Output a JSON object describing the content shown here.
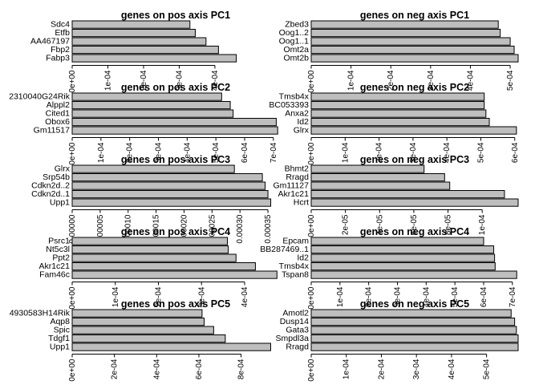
{
  "chart_data": [
    {
      "type": "bar",
      "orientation": "horizontal",
      "title": "genes on pos axis PC1",
      "categories": [
        "Sdc4",
        "Etfb",
        "AA467197",
        "Fbp2",
        "Fabp3"
      ],
      "values": [
        0.00033,
        0.000345,
        0.000375,
        0.00041,
        0.00046
      ],
      "xlim": [
        0,
        0.00058
      ],
      "tick_labels": [
        "0e+00",
        "1e-04",
        "2e-04",
        "3e-04",
        "4e-04"
      ]
    },
    {
      "type": "bar",
      "orientation": "horizontal",
      "title": "genes on neg axis PC1",
      "categories": [
        "Zbed3",
        "Oog1..2",
        "Oog1..1",
        "Omt2a",
        "Omt2b"
      ],
      "values": [
        0.00047,
        0.000475,
        0.0005,
        0.00051,
        0.00052
      ],
      "xlim": [
        0,
        0.00052
      ],
      "tick_labels": [
        "0e+00",
        "1e-04",
        "2e-04",
        "3e-04",
        "4e-04",
        "5e-04"
      ]
    },
    {
      "type": "bar",
      "orientation": "horizontal",
      "title": "genes on pos axis PC2",
      "categories": [
        "2310040G24Rik",
        "Alppl2",
        "Cited1",
        "Obox6",
        "Gm11517"
      ],
      "values": [
        0.00052,
        0.00055,
        0.00056,
        0.00071,
        0.000715
      ],
      "xlim": [
        0,
        0.00072
      ],
      "tick_labels": [
        "0e+00",
        "1e-04",
        "2e-04",
        "3e-04",
        "4e-04",
        "5e-04",
        "6e-04",
        "7e-04"
      ]
    },
    {
      "type": "bar",
      "orientation": "horizontal",
      "title": "genes on neg axis PC2",
      "categories": [
        "Tmsb4x",
        "BC053393",
        "Anxa2",
        "Id2",
        "Glrx"
      ],
      "values": [
        0.00051,
        0.00051,
        0.000515,
        0.000525,
        0.000605
      ],
      "xlim": [
        0,
        0.00061
      ],
      "tick_labels": [
        "0e+00",
        "1e-04",
        "2e-04",
        "3e-04",
        "4e-04",
        "5e-04",
        "6e-04"
      ]
    },
    {
      "type": "bar",
      "orientation": "horizontal",
      "title": "genes on pos axis PC3",
      "categories": [
        "Glrx",
        "Srp54b",
        "Cdkn2d..2",
        "Cdkn2d..1",
        "Upp1"
      ],
      "values": [
        0.00029,
        0.00034,
        0.000345,
        0.00035,
        0.000355
      ],
      "xlim": [
        0,
        0.00037
      ],
      "tick_labels": [
        "0.00000",
        "0.00005",
        "0.00010",
        "0.00015",
        "0.00020",
        "0.00025",
        "0.00030",
        "0.00035"
      ]
    },
    {
      "type": "bar",
      "orientation": "horizontal",
      "title": "genes on neg axis PC3",
      "categories": [
        "Bhmt2",
        "Rragd",
        "Gm11127",
        "Akr1c21",
        "Hcrt"
      ],
      "values": [
        6.6e-05,
        7.8e-05,
        8.1e-05,
        0.000113,
        0.000121
      ],
      "xlim": [
        0,
        0.000121
      ],
      "tick_labels": [
        "0e+00",
        "2e-05",
        "4e-05",
        "6e-05",
        "8e-05",
        "1e-04"
      ]
    },
    {
      "type": "bar",
      "orientation": "horizontal",
      "title": "genes on pos axis PC4",
      "categories": [
        "Psrc1",
        "Nt5c3l",
        "Ppt2",
        "Akr1c21",
        "Fam46c"
      ],
      "values": [
        0.00036,
        0.000362,
        0.00038,
        0.000425,
        0.000475
      ],
      "xlim": [
        0,
        0.00048
      ],
      "tick_labels": [
        "0e+00",
        "1e-04",
        "2e-04",
        "3e-04",
        "4e-04"
      ]
    },
    {
      "type": "bar",
      "orientation": "horizontal",
      "title": "genes on neg axis PC4",
      "categories": [
        "Epcam",
        "BB287469..1",
        "Id2",
        "Tmsb4x",
        "Tspan8"
      ],
      "values": [
        0.0006,
        0.000635,
        0.000638,
        0.00064,
        0.000715
      ],
      "xlim": [
        0,
        0.00072
      ],
      "tick_labels": [
        "0e+00",
        "1e-04",
        "2e-04",
        "3e-04",
        "4e-04",
        "5e-04",
        "6e-04",
        "7e-04"
      ]
    },
    {
      "type": "bar",
      "orientation": "horizontal",
      "title": "genes on pos axis PC5",
      "categories": [
        "4930583H14Rik",
        "Aqp8",
        "Spic",
        "Tdgf1",
        "Upp1"
      ],
      "values": [
        0.000615,
        0.000625,
        0.00067,
        0.000725,
        0.00094
      ],
      "xlim": [
        0,
        0.00098
      ],
      "tick_labels": [
        "0e+00",
        "2e-04",
        "4e-04",
        "6e-04",
        "8e-04"
      ]
    },
    {
      "type": "bar",
      "orientation": "horizontal",
      "title": "genes on neg axis PC5",
      "categories": [
        "Amotl2",
        "Dusp14",
        "Gata3",
        "Smpdl3a",
        "Rragd"
      ],
      "values": [
        0.00057,
        0.00058,
        0.000585,
        0.00059,
        0.00059
      ],
      "xlim": [
        0,
        0.00059
      ],
      "tick_labels": [
        "0e+00",
        "1e-04",
        "2e-04",
        "3e-04",
        "4e-04",
        "5e-04"
      ]
    }
  ]
}
